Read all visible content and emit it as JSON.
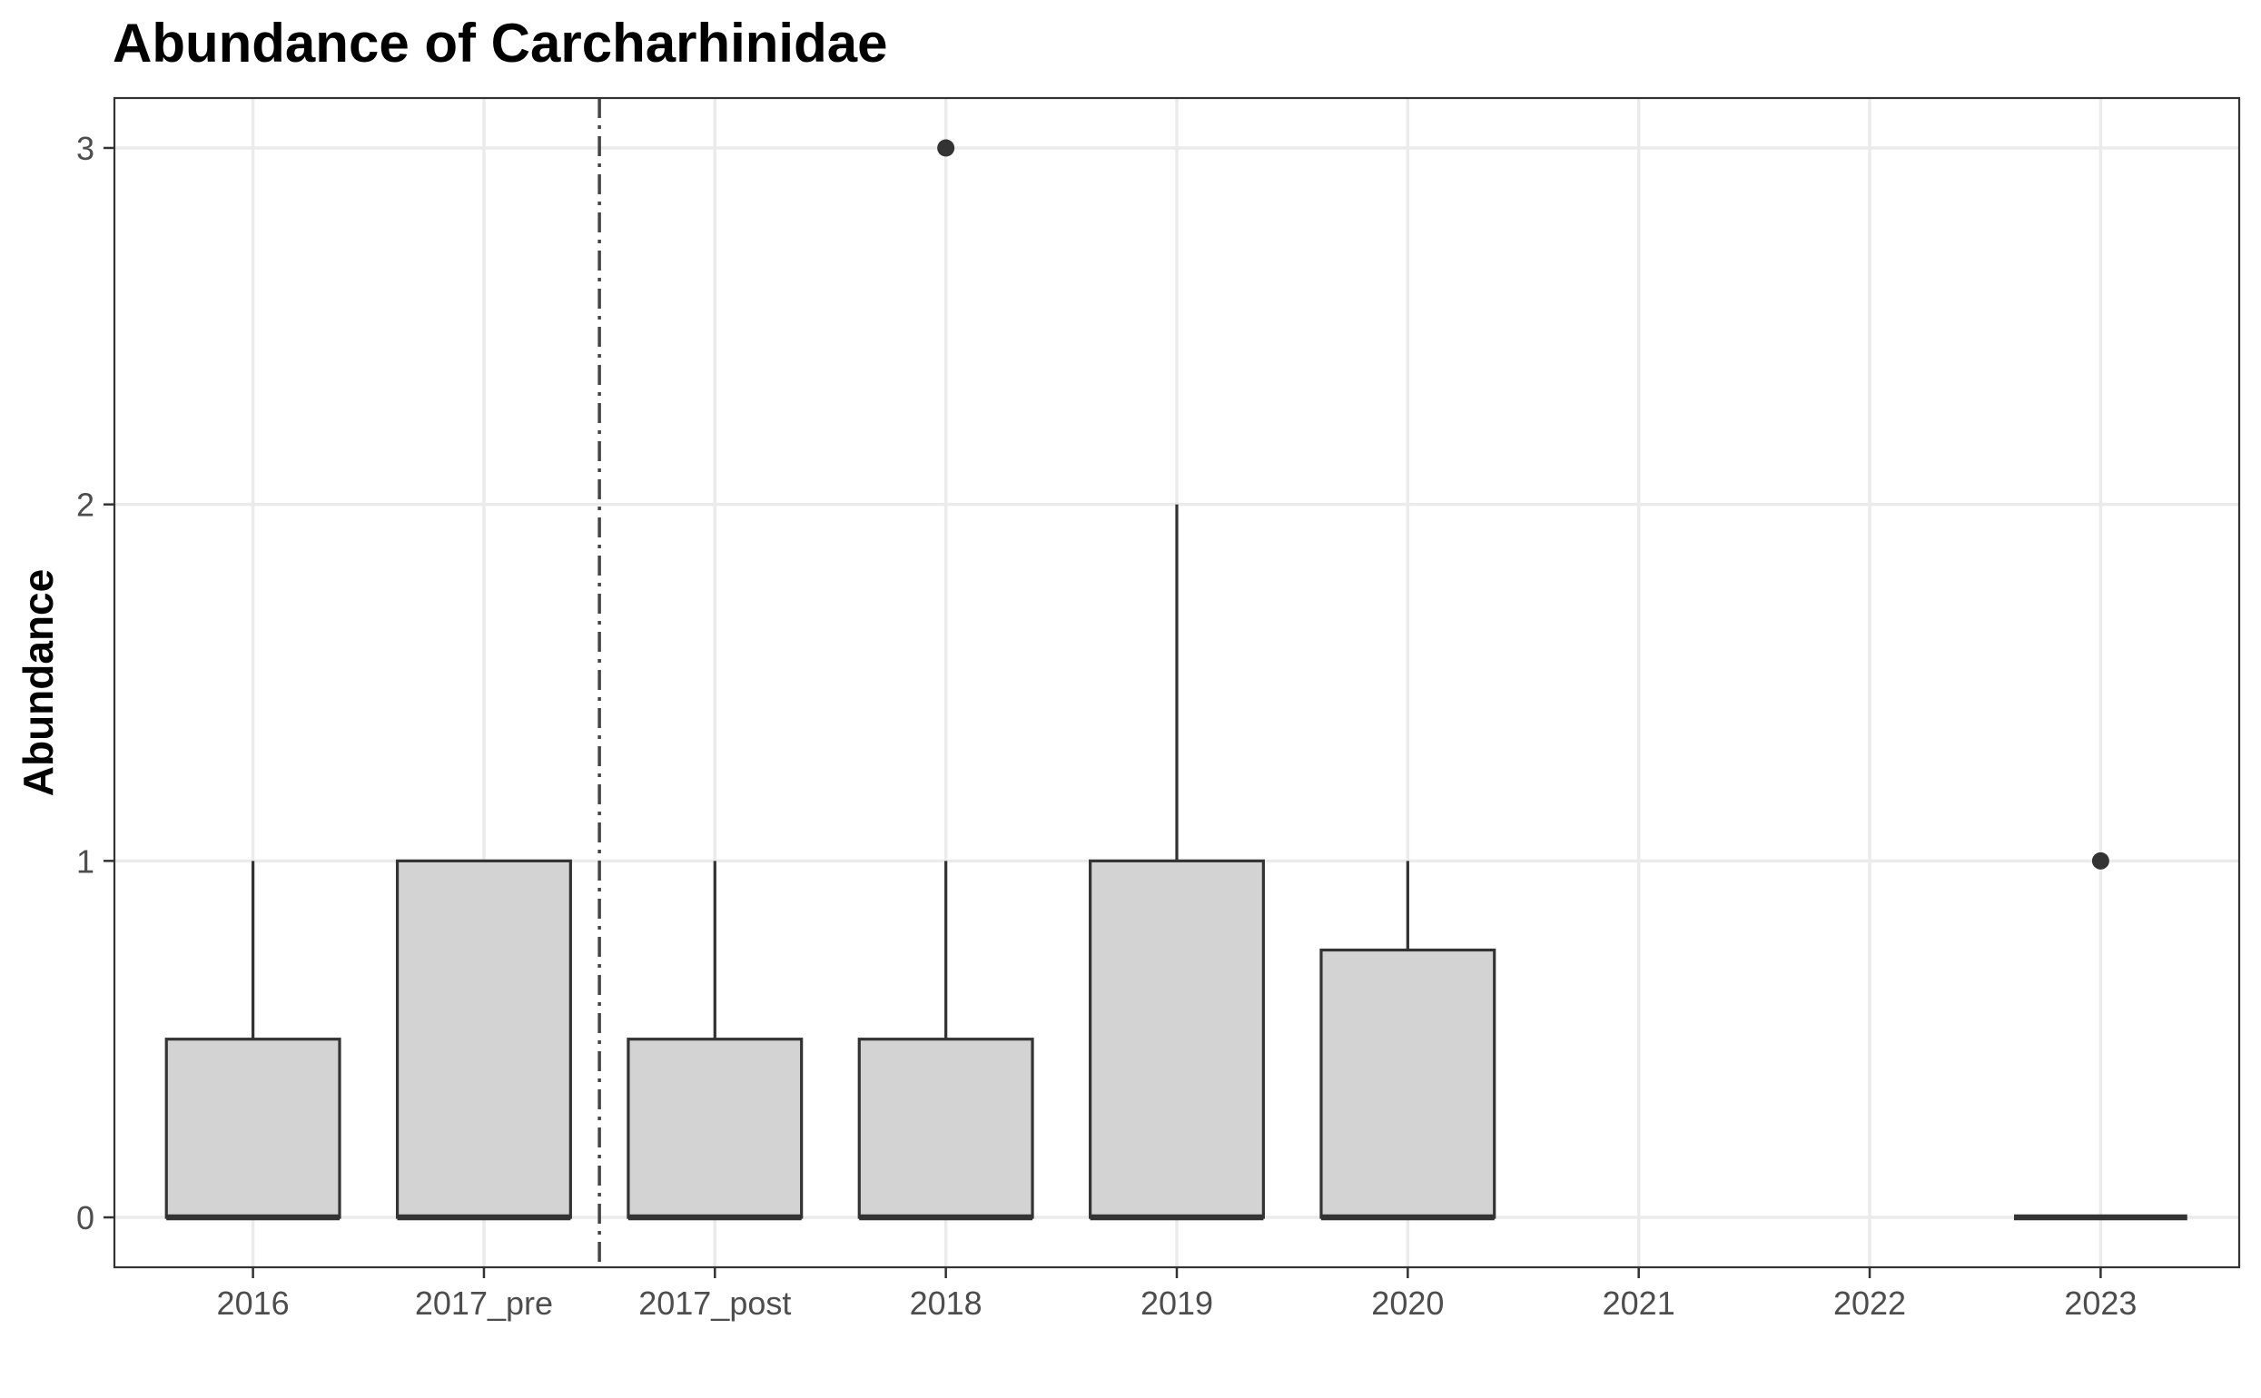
{
  "chart_data": {
    "type": "boxplot",
    "title": "Abundance of Carcharhinidae",
    "xlabel": "",
    "ylabel": "Abundance",
    "ylim": [
      -0.14,
      3.14
    ],
    "yticks": [
      0,
      1,
      2,
      3
    ],
    "grid": true,
    "categories": [
      "2016",
      "2017_pre",
      "2017_post",
      "2018",
      "2019",
      "2020",
      "2021",
      "2022",
      "2023"
    ],
    "boxes": [
      {
        "category": "2016",
        "min": 0,
        "q1": 0,
        "median": 0,
        "q3": 0.5,
        "max": 1,
        "outliers": []
      },
      {
        "category": "2017_pre",
        "min": 0,
        "q1": 0,
        "median": 0,
        "q3": 1,
        "max": 1,
        "outliers": []
      },
      {
        "category": "2017_post",
        "min": 0,
        "q1": 0,
        "median": 0,
        "q3": 0.5,
        "max": 1,
        "outliers": []
      },
      {
        "category": "2018",
        "min": 0,
        "q1": 0,
        "median": 0,
        "q3": 0.5,
        "max": 1,
        "outliers": [
          3
        ]
      },
      {
        "category": "2019",
        "min": 0,
        "q1": 0,
        "median": 0,
        "q3": 1,
        "max": 2,
        "outliers": []
      },
      {
        "category": "2020",
        "min": 0,
        "q1": 0,
        "median": 0,
        "q3": 0.75,
        "max": 1,
        "outliers": []
      },
      {
        "category": "2023",
        "min": 0,
        "q1": 0,
        "median": 0,
        "q3": 0,
        "max": 0,
        "outliers": [
          1
        ]
      }
    ],
    "reference_line": {
      "between": [
        "2017_pre",
        "2017_post"
      ],
      "style": "dashed"
    },
    "colors": {
      "box_fill": "#d3d3d3",
      "box_stroke": "#333333",
      "grid": "#ebebeb",
      "panel_border": "#333333",
      "ref_line": "#444444"
    }
  }
}
